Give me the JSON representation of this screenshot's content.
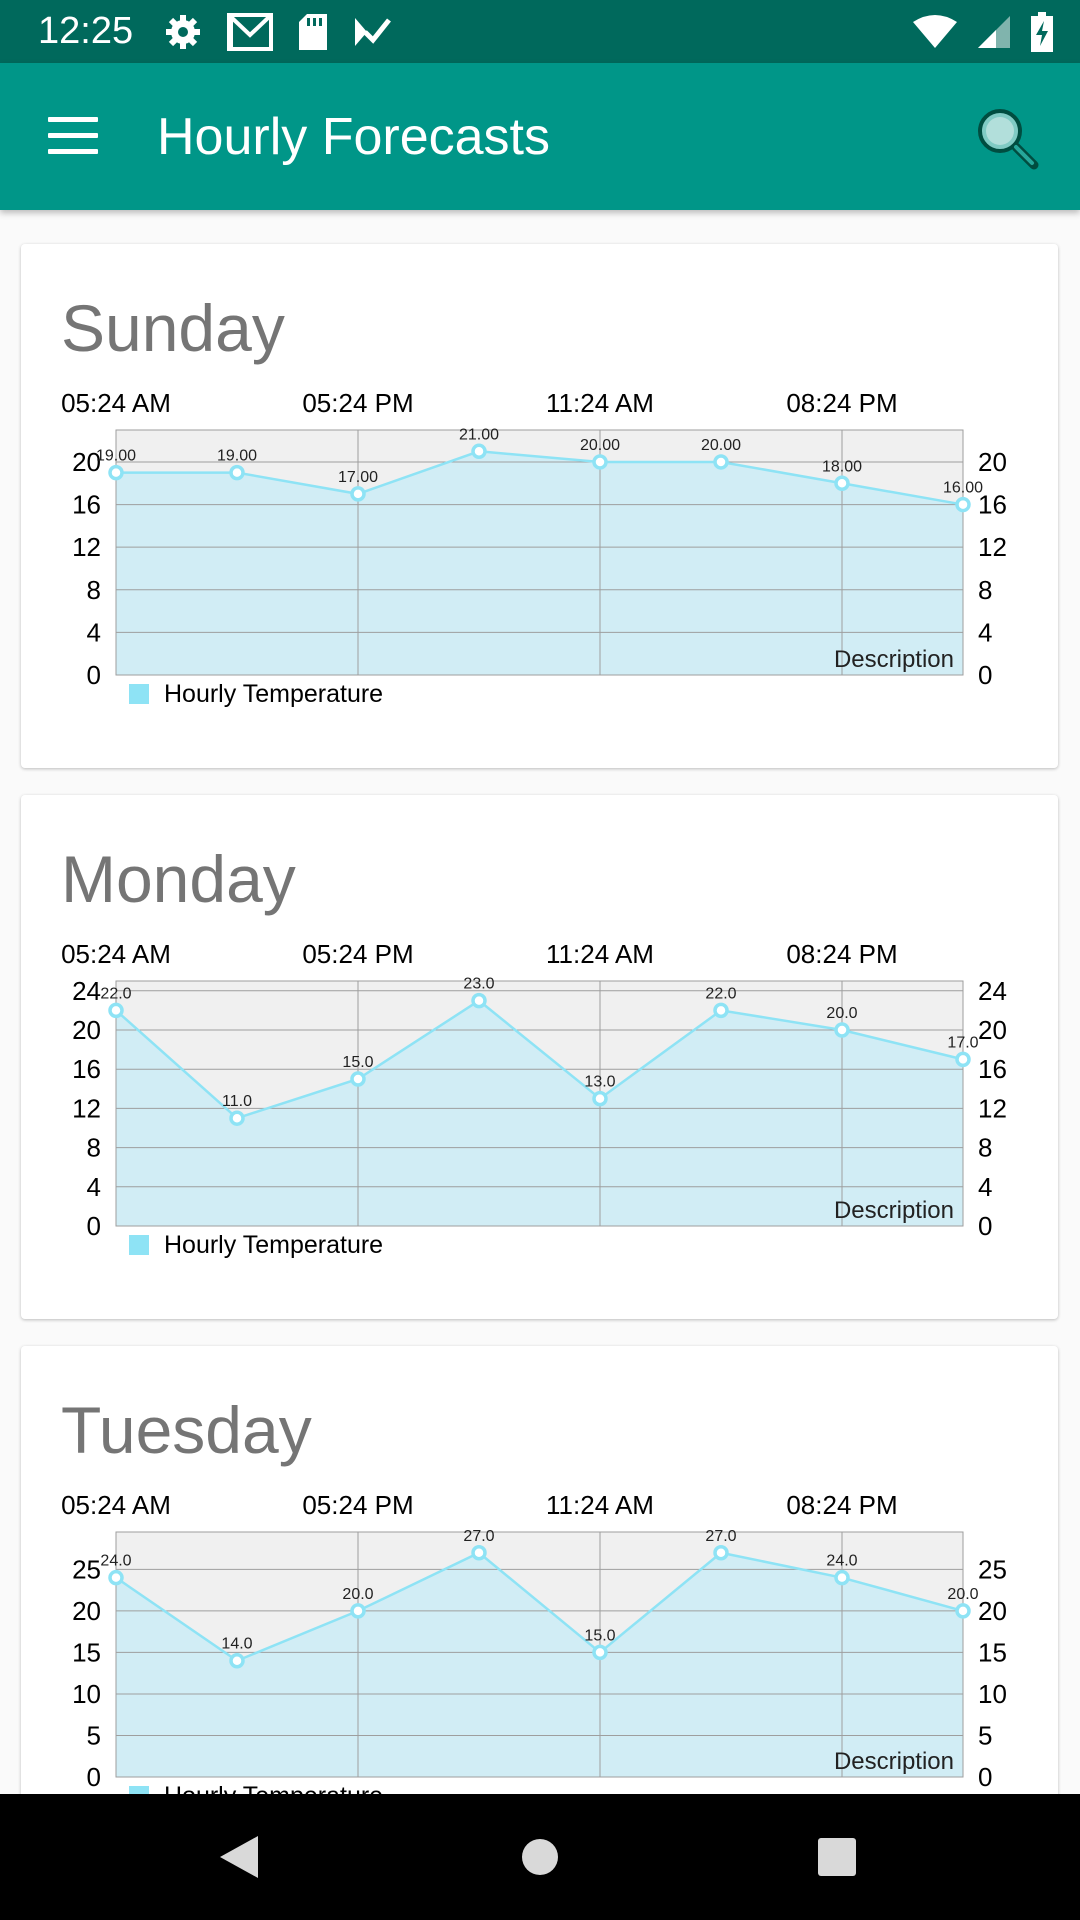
{
  "status_bar": {
    "time": "12:25",
    "icons": [
      "gear-icon",
      "gmail-icon",
      "sd-card-icon",
      "task-check-icon"
    ],
    "right_icons": [
      "wifi-icon",
      "signal-icon",
      "battery-charging-icon"
    ]
  },
  "app_bar": {
    "title": "Hourly Forecasts",
    "menu_icon": "hamburger-menu-icon",
    "search_icon": "search-icon"
  },
  "colors": {
    "status_bar": "#00695c",
    "app_bar": "#009688",
    "series_line": "#8ee3f5",
    "series_fill": "#d1edf5",
    "plot_background": "#f0f0f0"
  },
  "cards": [
    {
      "day": "Sunday",
      "chart_data": {
        "type": "area",
        "x_ticks": [
          "05:24 AM",
          "05:24 PM",
          "11:24 AM",
          "08:24 PM"
        ],
        "values": [
          19,
          19,
          17,
          21,
          20,
          20,
          18,
          16
        ],
        "value_labels": [
          "19.00",
          "19.00",
          "17.00",
          "21.00",
          "20.00",
          "20.00",
          "18.00",
          "16.00"
        ],
        "y_ticks": [
          "0",
          "4",
          "8",
          "12",
          "16",
          "20"
        ],
        "ylim": [
          0,
          23
        ],
        "description": "Description",
        "legend": "Hourly Temperature",
        "grid": true,
        "legend_position": "bottom-left"
      }
    },
    {
      "day": "Monday",
      "chart_data": {
        "type": "area",
        "x_ticks": [
          "05:24 AM",
          "05:24 PM",
          "11:24 AM",
          "08:24 PM"
        ],
        "values": [
          22,
          11,
          15,
          23,
          13,
          22,
          20,
          17
        ],
        "value_labels": [
          "22.0",
          "11.0",
          "15.0",
          "23.0",
          "13.0",
          "22.0",
          "20.0",
          "17.0"
        ],
        "y_ticks": [
          "0",
          "4",
          "8",
          "12",
          "16",
          "20",
          "24"
        ],
        "ylim": [
          0,
          25
        ],
        "description": "Description",
        "legend": "Hourly Temperature",
        "grid": true,
        "legend_position": "bottom-left"
      }
    },
    {
      "day": "Tuesday",
      "chart_data": {
        "type": "area",
        "x_ticks": [
          "05:24 AM",
          "05:24 PM",
          "11:24 AM",
          "08:24 PM"
        ],
        "values": [
          24,
          14,
          20,
          27,
          15,
          27,
          24,
          20
        ],
        "value_labels": [
          "24.0",
          "14.0",
          "20.0",
          "27.0",
          "15.0",
          "27.0",
          "24.0",
          "20.0"
        ],
        "y_ticks": [
          "0",
          "5",
          "10",
          "15",
          "20",
          "25"
        ],
        "ylim": [
          0,
          29.5
        ],
        "description": "Description",
        "legend": "Hourly Temperature",
        "grid": true,
        "legend_position": "bottom-left"
      }
    }
  ],
  "nav_bar": {
    "icons": [
      "back-icon",
      "home-icon",
      "recents-icon"
    ]
  }
}
